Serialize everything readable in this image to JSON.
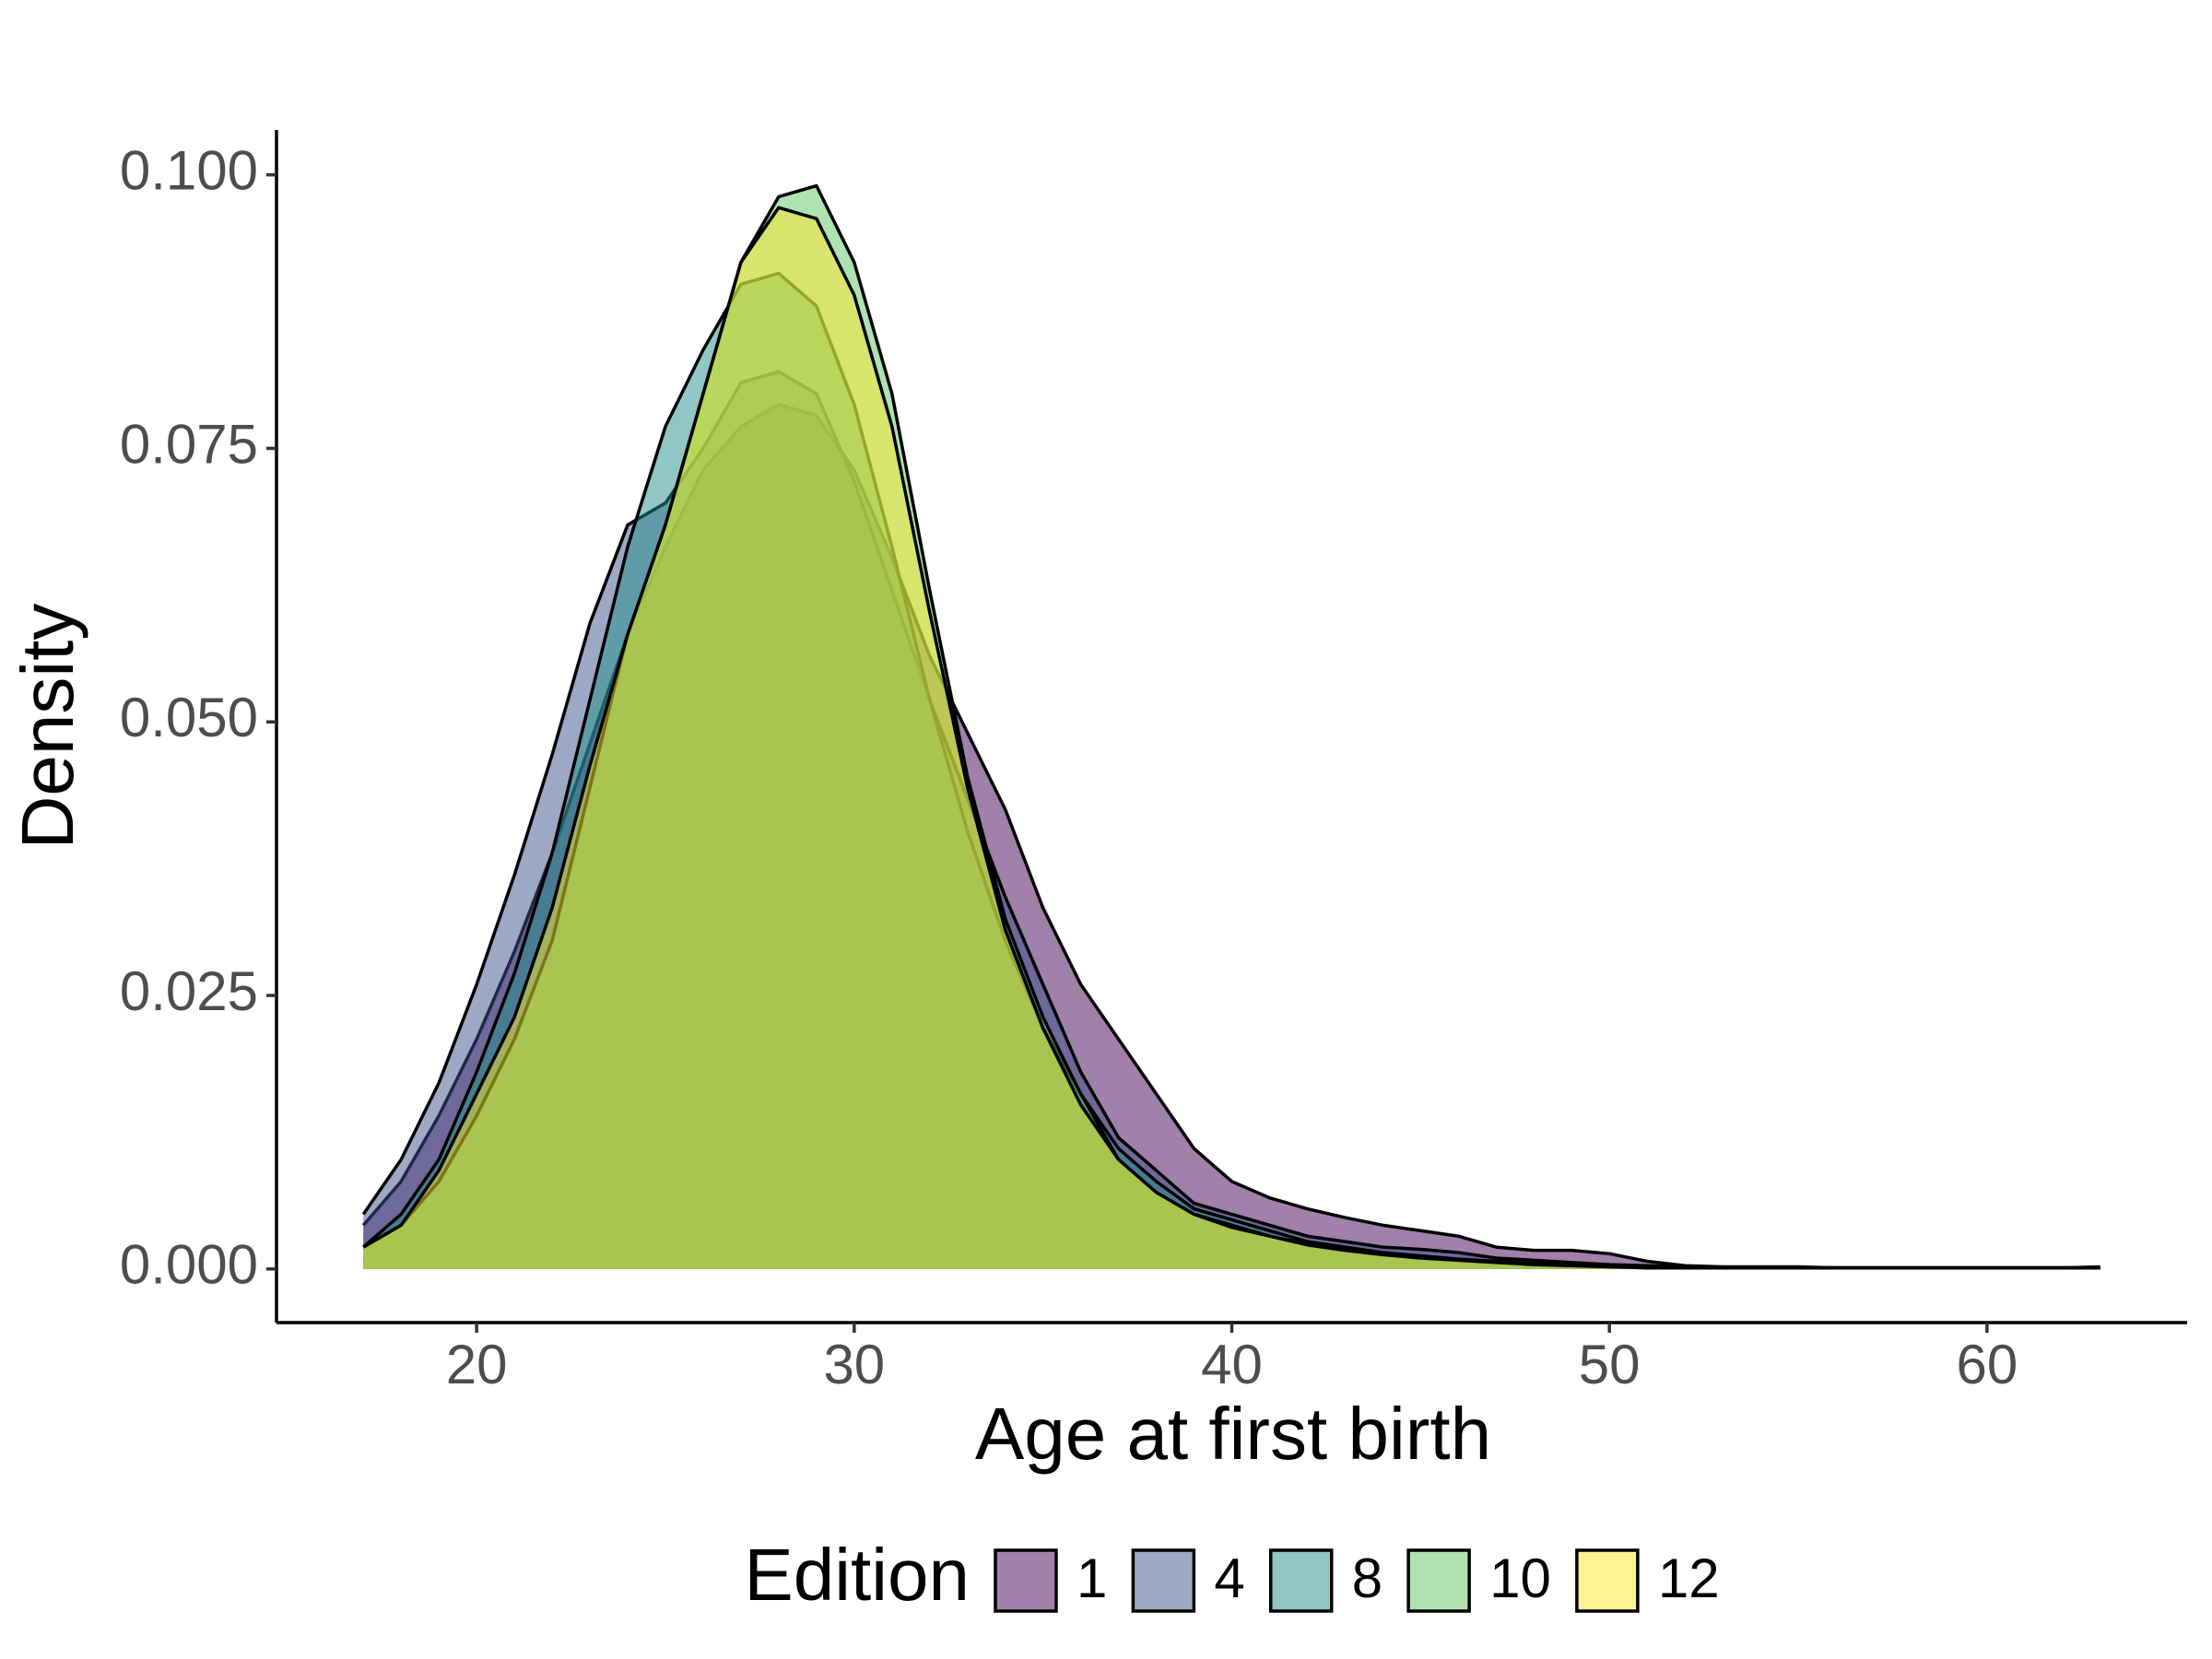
{
  "chart_data": {
    "type": "area",
    "x_label": "Age at first birth",
    "y_label": "Density",
    "legend_title": "Edition",
    "legend_position": "bottom",
    "xlim": [
      14.7,
      65.3
    ],
    "ylim": [
      -0.0049,
      0.1041
    ],
    "xticks": [
      20,
      30,
      40,
      50,
      60
    ],
    "yticks": [
      {
        "value": 0,
        "label": "0.000"
      },
      {
        "value": 0.025,
        "label": "0.025"
      },
      {
        "value": 0.05,
        "label": "0.050"
      },
      {
        "value": 0.075,
        "label": "0.075"
      },
      {
        "value": 0.1,
        "label": "0.100"
      }
    ],
    "x": [
      17,
      18,
      19,
      20,
      21,
      22,
      23,
      24,
      25,
      26,
      27,
      28,
      29,
      30,
      31,
      32,
      33,
      34,
      35,
      36,
      37,
      38,
      39,
      40,
      41,
      42,
      43,
      44,
      45,
      46,
      47,
      48,
      49,
      50,
      51,
      52,
      53,
      54,
      55,
      56,
      57,
      58,
      59,
      60,
      61,
      62,
      63
    ],
    "series": [
      {
        "name": "1",
        "color": "#440154",
        "values": [
          0.004,
          0.008,
          0.014,
          0.021,
          0.029,
          0.038,
          0.048,
          0.058,
          0.066,
          0.073,
          0.077,
          0.079,
          0.078,
          0.073,
          0.065,
          0.056,
          0.049,
          0.042,
          0.033,
          0.026,
          0.021,
          0.016,
          0.011,
          0.008,
          0.0065,
          0.0055,
          0.0047,
          0.004,
          0.0035,
          0.003,
          0.002,
          0.0017,
          0.0017,
          0.0014,
          0.0007,
          0.0003,
          0.0002,
          0.0002,
          0.0002,
          0.0001,
          0.0001,
          0.0001,
          0.0001,
          0.0001,
          0.0001,
          0.0001,
          0.0002
        ]
      },
      {
        "name": "4",
        "color": "#3B528B",
        "values": [
          0.005,
          0.01,
          0.017,
          0.026,
          0.036,
          0.047,
          0.059,
          0.068,
          0.07,
          0.075,
          0.081,
          0.082,
          0.08,
          0.072,
          0.062,
          0.052,
          0.043,
          0.034,
          0.026,
          0.018,
          0.012,
          0.009,
          0.006,
          0.005,
          0.004,
          0.003,
          0.0025,
          0.002,
          0.0018,
          0.0015,
          0.001,
          0.0008,
          0.0006,
          0.0004,
          0.0003,
          0.0002,
          0.0001,
          0.0001,
          0.0001,
          0.0001,
          0.0001,
          0.0001,
          0.0001,
          0.0001,
          0.0001,
          0.0001,
          0.0001
        ]
      },
      {
        "name": "8",
        "color": "#21908C",
        "values": [
          0.002,
          0.005,
          0.01,
          0.018,
          0.027,
          0.038,
          0.052,
          0.066,
          0.077,
          0.084,
          0.09,
          0.091,
          0.088,
          0.079,
          0.066,
          0.052,
          0.04,
          0.03,
          0.022,
          0.016,
          0.011,
          0.008,
          0.0055,
          0.0045,
          0.0035,
          0.0025,
          0.002,
          0.0015,
          0.0012,
          0.0009,
          0.0007,
          0.0005,
          0.0004,
          0.0003,
          0.0002,
          0.0001,
          0.0001,
          0.0001,
          0.0001,
          0.0001,
          0.0001,
          0.0001,
          0.0001,
          0.0001,
          0.0001,
          0.0001,
          0.0001
        ]
      },
      {
        "name": "10",
        "color": "#5DC863",
        "values": [
          0.002,
          0.004,
          0.008,
          0.014,
          0.021,
          0.03,
          0.044,
          0.058,
          0.068,
          0.08,
          0.092,
          0.098,
          0.099,
          0.092,
          0.08,
          0.062,
          0.045,
          0.032,
          0.023,
          0.016,
          0.01,
          0.007,
          0.005,
          0.004,
          0.003,
          0.0023,
          0.0018,
          0.0014,
          0.0011,
          0.0008,
          0.0006,
          0.0004,
          0.0003,
          0.0002,
          0.0001,
          0.0001,
          0.0001,
          0.0001,
          0.0001,
          0.0001,
          0.0001,
          0.0001,
          0.0001,
          0.0001,
          0.0001,
          0.0001,
          0.0001
        ]
      },
      {
        "name": "12",
        "color": "#FDE725",
        "values": [
          0.002,
          0.004,
          0.009,
          0.016,
          0.023,
          0.033,
          0.046,
          0.058,
          0.068,
          0.08,
          0.092,
          0.097,
          0.096,
          0.089,
          0.077,
          0.06,
          0.044,
          0.031,
          0.022,
          0.015,
          0.01,
          0.007,
          0.005,
          0.0038,
          0.003,
          0.0022,
          0.0017,
          0.0013,
          0.001,
          0.0008,
          0.0006,
          0.0004,
          0.0003,
          0.0002,
          0.0001,
          0.0001,
          0.0001,
          0.0001,
          0.0001,
          0.0001,
          0.0001,
          0.0001,
          0.0001,
          0.0001,
          0.0001,
          0.0001,
          0.0001
        ]
      }
    ]
  }
}
